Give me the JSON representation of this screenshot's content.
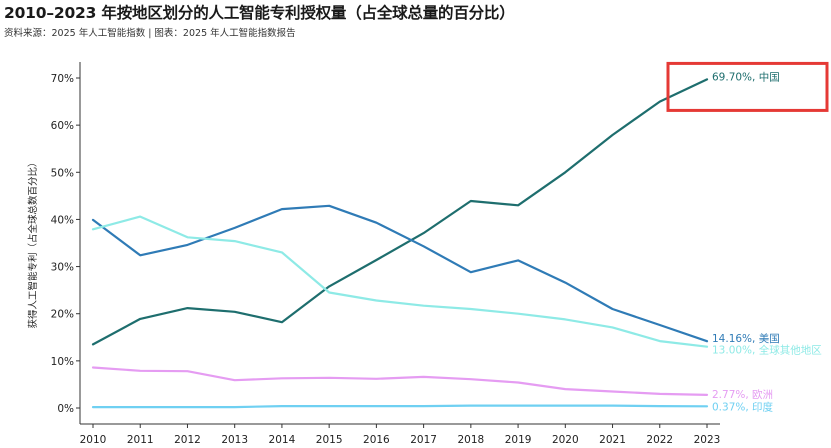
{
  "title": "2010–2023 年按地区划分的人工智能专利授权量（占全球总量的百分比）",
  "subtitle": "资料来源：2025 年人工智能指数 | 图表：2025 年人工智能指数报告",
  "chart_data": {
    "type": "line",
    "title": "2010–2023 年按地区划分的人工智能专利授权量（占全球总量的百分比）",
    "xlabel": "",
    "ylabel": "获得人工智能专利（占全球总数百分比）",
    "x": [
      2010,
      2011,
      2012,
      2013,
      2014,
      2015,
      2016,
      2017,
      2018,
      2019,
      2020,
      2021,
      2022,
      2023
    ],
    "ylim": [
      0,
      70
    ],
    "yticks": [
      0,
      10,
      20,
      30,
      40,
      50,
      60,
      70
    ],
    "ytick_labels": [
      "0%",
      "10%",
      "20%",
      "30%",
      "40%",
      "50%",
      "60%",
      "70%"
    ],
    "series": [
      {
        "name": "中国",
        "color": "#1e6e6e",
        "label": "69.70%, 中国",
        "values": [
          13.5,
          18.9,
          21.2,
          20.4,
          18.2,
          25.8,
          31.4,
          37.1,
          43.9,
          43.0,
          50.0,
          57.9,
          65.0,
          69.7
        ]
      },
      {
        "name": "美国",
        "color": "#2f7bb6",
        "label": "14.16%, 美国",
        "values": [
          39.9,
          32.4,
          34.6,
          38.2,
          42.2,
          42.9,
          39.3,
          34.3,
          28.8,
          31.3,
          26.6,
          21.0,
          17.6,
          14.16
        ]
      },
      {
        "name": "全球其他地区",
        "color": "#8eeae6",
        "label": "13.00%, 全球其他地区",
        "values": [
          37.9,
          40.6,
          36.2,
          35.4,
          33.0,
          24.5,
          22.8,
          21.7,
          21.0,
          20.0,
          18.8,
          17.1,
          14.2,
          13.0
        ]
      },
      {
        "name": "欧洲",
        "color": "#e59cf2",
        "label": "2.77%, 欧洲",
        "values": [
          8.6,
          7.9,
          7.8,
          5.9,
          6.3,
          6.4,
          6.2,
          6.6,
          6.1,
          5.4,
          4.0,
          3.5,
          3.0,
          2.77
        ]
      },
      {
        "name": "印度",
        "color": "#6fd0f2",
        "label": "0.37%, 印度",
        "values": [
          0.2,
          0.2,
          0.2,
          0.2,
          0.4,
          0.4,
          0.4,
          0.4,
          0.5,
          0.5,
          0.5,
          0.5,
          0.4,
          0.37
        ]
      }
    ],
    "highlight_series": "中国",
    "highlight_color": "#e53935",
    "grid": false
  }
}
